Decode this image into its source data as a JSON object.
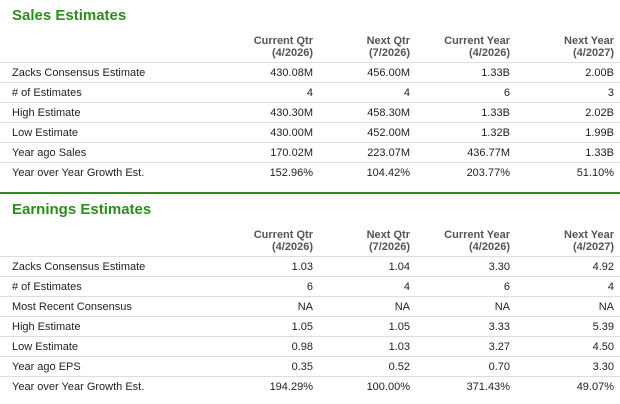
{
  "sales": {
    "title": "Sales Estimates",
    "columns": [
      {
        "line1": "Current Qtr",
        "line2": "(4/2026)"
      },
      {
        "line1": "Next Qtr",
        "line2": "(7/2026)"
      },
      {
        "line1": "Current Year",
        "line2": "(4/2026)"
      },
      {
        "line1": "Next Year",
        "line2": "(4/2027)"
      }
    ],
    "rows": [
      {
        "label": "Zacks Consensus Estimate",
        "values": [
          "430.08M",
          "456.00M",
          "1.33B",
          "2.00B"
        ]
      },
      {
        "label": "# of Estimates",
        "values": [
          "4",
          "4",
          "6",
          "3"
        ]
      },
      {
        "label": "High Estimate",
        "values": [
          "430.30M",
          "458.30M",
          "1.33B",
          "2.02B"
        ]
      },
      {
        "label": "Low Estimate",
        "values": [
          "430.00M",
          "452.00M",
          "1.32B",
          "1.99B"
        ]
      },
      {
        "label": "Year ago Sales",
        "values": [
          "170.02M",
          "223.07M",
          "436.77M",
          "1.33B"
        ]
      },
      {
        "label": "Year over Year Growth Est.",
        "values": [
          "152.96%",
          "104.42%",
          "203.77%",
          "51.10%"
        ]
      }
    ]
  },
  "earnings": {
    "title": "Earnings Estimates",
    "columns": [
      {
        "line1": "Current Qtr",
        "line2": "(4/2026)"
      },
      {
        "line1": "Next Qtr",
        "line2": "(7/2026)"
      },
      {
        "line1": "Current Year",
        "line2": "(4/2026)"
      },
      {
        "line1": "Next Year",
        "line2": "(4/2027)"
      }
    ],
    "rows": [
      {
        "label": "Zacks Consensus Estimate",
        "values": [
          "1.03",
          "1.04",
          "3.30",
          "4.92"
        ]
      },
      {
        "label": "# of Estimates",
        "values": [
          "6",
          "4",
          "6",
          "4"
        ]
      },
      {
        "label": "Most Recent Consensus",
        "values": [
          "NA",
          "NA",
          "NA",
          "NA"
        ]
      },
      {
        "label": "High Estimate",
        "values": [
          "1.05",
          "1.05",
          "3.33",
          "5.39"
        ]
      },
      {
        "label": "Low Estimate",
        "values": [
          "0.98",
          "1.03",
          "3.27",
          "4.50"
        ]
      },
      {
        "label": "Year ago EPS",
        "values": [
          "0.35",
          "0.52",
          "0.70",
          "3.30"
        ]
      },
      {
        "label": "Year over Year Growth Est.",
        "values": [
          "194.29%",
          "100.00%",
          "371.43%",
          "49.07%"
        ]
      }
    ]
  },
  "colors": {
    "accent": "#2e8b1e",
    "row_border": "#dddddd",
    "header_text": "#555555"
  }
}
